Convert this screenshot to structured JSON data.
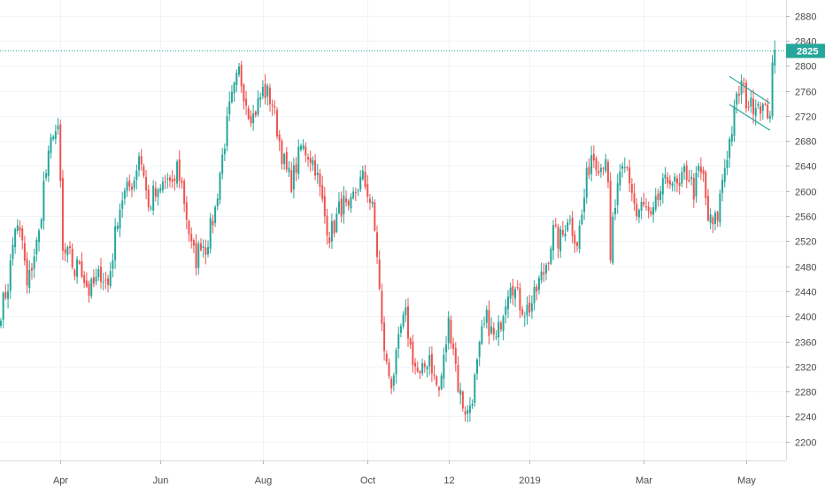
{
  "chart_data": {
    "type": "candlestick",
    "title": "",
    "xlabel": "",
    "ylabel": "",
    "ylim": [
      2170,
      2905
    ],
    "grid": true,
    "y_ticks": [
      2200,
      2240,
      2280,
      2320,
      2360,
      2400,
      2440,
      2480,
      2520,
      2560,
      2600,
      2640,
      2680,
      2720,
      2760,
      2800,
      2840,
      2880
    ],
    "x_ticks": [
      {
        "label": "Apr",
        "index": 25
      },
      {
        "label": "Jun",
        "index": 67
      },
      {
        "label": "Aug",
        "index": 110
      },
      {
        "label": "Oct",
        "index": 154
      },
      {
        "label": "12",
        "index": 188
      },
      {
        "label": "2019",
        "index": 222
      },
      {
        "label": "Mar",
        "index": 270
      },
      {
        "label": "May",
        "index": 313
      }
    ],
    "last_price": {
      "value": 2825,
      "label": "2825"
    },
    "colors": {
      "up": "#26a69a",
      "down": "#ef5350",
      "price_line": "#26a69a",
      "grid": "#f0f3fa",
      "text": "#4a4a4a"
    },
    "channel": {
      "upper": [
        {
          "index": 306,
          "value": 2783
        },
        {
          "index": 323,
          "value": 2740
        }
      ],
      "lower": [
        {
          "index": 306,
          "value": 2738
        },
        {
          "index": 323,
          "value": 2697
        }
      ]
    },
    "series": [
      {
        "name": "",
        "anchors": [
          [
            0,
            2410
          ],
          [
            3,
            2450
          ],
          [
            6,
            2545
          ],
          [
            9,
            2520
          ],
          [
            11,
            2445
          ],
          [
            14,
            2500
          ],
          [
            16,
            2530
          ],
          [
            18,
            2610
          ],
          [
            20,
            2650
          ],
          [
            22,
            2700
          ],
          [
            24,
            2690
          ],
          [
            25,
            2610
          ],
          [
            26,
            2500
          ],
          [
            29,
            2495
          ],
          [
            31,
            2470
          ],
          [
            33,
            2490
          ],
          [
            35,
            2460
          ],
          [
            37,
            2440
          ],
          [
            40,
            2455
          ],
          [
            42,
            2470
          ],
          [
            45,
            2450
          ],
          [
            47,
            2500
          ],
          [
            49,
            2560
          ],
          [
            51,
            2590
          ],
          [
            53,
            2600
          ],
          [
            56,
            2620
          ],
          [
            58,
            2660
          ],
          [
            60,
            2630
          ],
          [
            62,
            2570
          ],
          [
            64,
            2595
          ],
          [
            66,
            2590
          ],
          [
            68,
            2610
          ],
          [
            70,
            2620
          ],
          [
            72,
            2600
          ],
          [
            74,
            2640
          ],
          [
            76,
            2610
          ],
          [
            78,
            2560
          ],
          [
            80,
            2510
          ],
          [
            82,
            2490
          ],
          [
            84,
            2520
          ],
          [
            86,
            2510
          ],
          [
            88,
            2540
          ],
          [
            90,
            2570
          ],
          [
            92,
            2630
          ],
          [
            94,
            2680
          ],
          [
            96,
            2730
          ],
          [
            98,
            2760
          ],
          [
            100,
            2790
          ],
          [
            102,
            2760
          ],
          [
            104,
            2730
          ],
          [
            106,
            2720
          ],
          [
            108,
            2740
          ],
          [
            110,
            2760
          ],
          [
            112,
            2755
          ],
          [
            114,
            2740
          ],
          [
            116,
            2700
          ],
          [
            118,
            2660
          ],
          [
            120,
            2630
          ],
          [
            122,
            2615
          ],
          [
            124,
            2640
          ],
          [
            126,
            2670
          ],
          [
            128,
            2665
          ],
          [
            130,
            2655
          ],
          [
            132,
            2640
          ],
          [
            134,
            2600
          ],
          [
            136,
            2560
          ],
          [
            138,
            2530
          ],
          [
            140,
            2545
          ],
          [
            142,
            2570
          ],
          [
            144,
            2580
          ],
          [
            146,
            2560
          ],
          [
            148,
            2590
          ],
          [
            150,
            2610
          ],
          [
            152,
            2620
          ],
          [
            154,
            2600
          ],
          [
            156,
            2570
          ],
          [
            158,
            2500
          ],
          [
            160,
            2380
          ],
          [
            162,
            2320
          ],
          [
            164,
            2295
          ],
          [
            166,
            2330
          ],
          [
            168,
            2380
          ],
          [
            170,
            2400
          ],
          [
            172,
            2350
          ],
          [
            174,
            2320
          ],
          [
            176,
            2300
          ],
          [
            178,
            2320
          ],
          [
            180,
            2340
          ],
          [
            182,
            2300
          ],
          [
            184,
            2280
          ],
          [
            186,
            2330
          ],
          [
            188,
            2390
          ],
          [
            190,
            2355
          ],
          [
            192,
            2290
          ],
          [
            194,
            2260
          ],
          [
            196,
            2245
          ],
          [
            198,
            2275
          ],
          [
            200,
            2320
          ],
          [
            202,
            2370
          ],
          [
            204,
            2395
          ],
          [
            206,
            2375
          ],
          [
            208,
            2360
          ],
          [
            210,
            2395
          ],
          [
            212,
            2430
          ],
          [
            214,
            2460
          ],
          [
            216,
            2440
          ],
          [
            218,
            2420
          ],
          [
            220,
            2410
          ],
          [
            222,
            2415
          ],
          [
            224,
            2430
          ],
          [
            226,
            2455
          ],
          [
            228,
            2470
          ],
          [
            230,
            2500
          ],
          [
            232,
            2535
          ],
          [
            234,
            2520
          ],
          [
            236,
            2530
          ],
          [
            238,
            2560
          ],
          [
            240,
            2540
          ],
          [
            242,
            2520
          ],
          [
            244,
            2560
          ],
          [
            246,
            2620
          ],
          [
            248,
            2660
          ],
          [
            250,
            2650
          ],
          [
            252,
            2640
          ],
          [
            254,
            2660
          ],
          [
            255,
            2600
          ],
          [
            256,
            2480
          ],
          [
            257,
            2550
          ],
          [
            259,
            2600
          ],
          [
            261,
            2630
          ],
          [
            263,
            2635
          ],
          [
            265,
            2600
          ],
          [
            267,
            2560
          ],
          [
            269,
            2575
          ],
          [
            271,
            2570
          ],
          [
            273,
            2550
          ],
          [
            275,
            2575
          ],
          [
            277,
            2600
          ],
          [
            279,
            2610
          ],
          [
            281,
            2625
          ],
          [
            283,
            2610
          ],
          [
            285,
            2600
          ],
          [
            287,
            2630
          ],
          [
            289,
            2625
          ],
          [
            291,
            2600
          ],
          [
            293,
            2630
          ],
          [
            295,
            2620
          ],
          [
            297,
            2555
          ],
          [
            299,
            2545
          ],
          [
            301,
            2560
          ],
          [
            303,
            2620
          ],
          [
            305,
            2660
          ],
          [
            307,
            2700
          ],
          [
            309,
            2745
          ],
          [
            311,
            2770
          ],
          [
            313,
            2745
          ],
          [
            315,
            2735
          ],
          [
            317,
            2745
          ],
          [
            319,
            2740
          ],
          [
            321,
            2725
          ],
          [
            323,
            2730
          ],
          [
            324,
            2790
          ],
          [
            325,
            2825
          ]
        ]
      }
    ]
  }
}
